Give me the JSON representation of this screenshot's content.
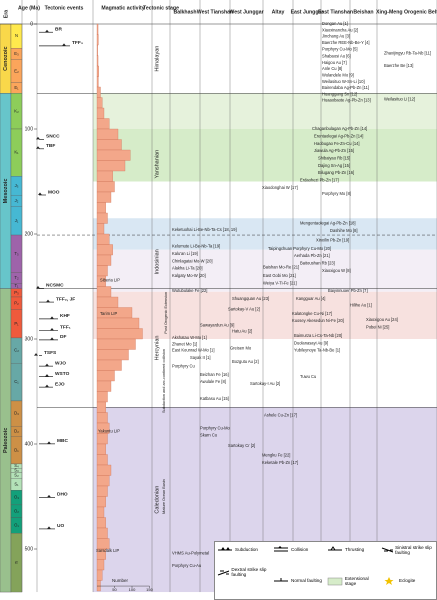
{
  "header": {
    "era": "Era",
    "age": "Age (Ma)",
    "tectonic_events": "Tectonic events",
    "magmatic_activity": "Magmatic activity",
    "tectonic_stage": "Tectonic stage",
    "regions": [
      "Balkhash",
      "West Tianshan",
      "West Junggar",
      "Altay",
      "East Junggar",
      "East Tianshan",
      "Beishan",
      "Xing-Meng Orogenic Belt"
    ]
  },
  "eras": [
    "Cenozoic",
    "Mesozoic",
    "Paleozoic"
  ],
  "periods": [
    "N",
    "E₃",
    "E₂",
    "E₁",
    "K₂",
    "K₁",
    "J₃",
    "J₂",
    "J₁",
    "T₃",
    "T₂",
    "T₁",
    "P₃",
    "P₂",
    "P₁",
    "C₂",
    "C₁",
    "D₃",
    "D₂",
    "D₁",
    "S₄",
    "S₃",
    "S₂",
    "S₁",
    "O₃",
    "O₂",
    "O₁",
    "∈"
  ],
  "age_ticks": [
    0,
    100,
    200,
    300,
    400,
    500
  ],
  "tectonic_events": [
    "BR",
    "TFF₃",
    "SNCC",
    "TBF",
    "MOO",
    "NCSMC",
    "Siberia LIP",
    "TFF₂, JF",
    "KHF",
    "TFF₁",
    "DF",
    "Tarim LIP",
    "TSFS",
    "WJO",
    "WSTO",
    "EJO",
    "MBC",
    "Yakuntu LIP",
    "DHO",
    "Sarsdalk LIP",
    "UO"
  ],
  "magmatic_activity": {
    "bins": [
      0,
      10,
      20,
      30,
      40,
      50,
      60,
      70,
      80,
      90,
      100,
      110,
      120,
      130,
      140,
      150,
      160,
      170,
      180,
      190,
      200,
      210,
      220,
      230,
      240,
      250,
      260,
      270,
      280,
      290,
      300,
      310,
      320,
      330,
      340,
      350,
      360,
      370,
      380,
      390,
      400,
      410,
      420,
      430,
      440,
      450,
      460,
      470,
      480,
      490,
      500,
      510,
      520,
      530,
      540
    ],
    "counts": [
      3,
      4,
      2,
      3,
      5,
      4,
      10,
      15,
      20,
      35,
      60,
      70,
      95,
      80,
      45,
      50,
      40,
      25,
      30,
      20,
      35,
      45,
      40,
      30,
      25,
      40,
      60,
      100,
      120,
      130,
      110,
      90,
      70,
      50,
      40,
      30,
      25,
      30,
      35,
      30,
      25,
      30,
      40,
      35,
      30,
      25,
      20,
      25,
      30,
      35,
      25,
      20,
      15,
      10
    ],
    "axis_label": "Number",
    "ticks": [
      50,
      100,
      150
    ]
  },
  "stages": [
    "Himalayan",
    "Yanshanian",
    "Indosinian",
    "Hercynian",
    "Caledonian"
  ],
  "stage_notes": [
    "Post Orogenic Extension",
    "Subduction and arc-continent collision",
    "Mature Ocean Basin"
  ],
  "deposits": [
    "Dongan Au [1]",
    "Xiaoxinancha Au [2]",
    "Jinchang Au [3]",
    "Baerzhe REE-Nb-Be-Y [4]",
    "Porphyry Cu-Mo [5]",
    "Shabaosi Au [6]",
    "Haigou Au [7]",
    "Anle Cu [8]",
    "Wulandele Mo [9]",
    "Weilasituo W-Sn-Li [10]",
    "Bairendaba Ag-Pb-Zn [11]",
    "Huanggang Sn [12]",
    "Huaaobaote Ag-Pb-Zn [13]",
    "Zhaxijingyu Rb-Ta-Nb [11]",
    "Baerzhe Be [13]",
    "Weilasituo Li [12]",
    "Chaganbulagan Ag-Pb-Zn [14]",
    "Erentaolegai Ag-Pb-Zn [14]",
    "Haobugao Fe-Zn-Cu [14]",
    "Jiawula Ag-Pb-Zn [15]",
    "Shibaiyao Rb [15]",
    "Dajing Sn-Ag [15]",
    "Bilugang Pb-Zn [16]",
    "Erdaohezi Pb-Zn [17]",
    "Xiaodonghai W [17]",
    "Porphyry Mo [8]",
    "Mengentaolegai Ag-Pb-Zn [18]",
    "Dashihe Mo [8]",
    "Xinxilin Pb-Zn [19]",
    "Taipingchuan Porphyry Cu-Mo [20]",
    "Aerhada Pb-Zn [21]",
    "Baitoushan Rb [23]",
    "Xiaoxigou W [8]",
    "Keketuohai Li-Be-Nb-Ta-Cs [18, 19]",
    "Kelumute Li-Be-Nb-Ta [19]",
    "Kalu'an Li [19]",
    "Chinlagatai Mo-W [20]",
    "Alakha Li-Ta [20]",
    "Kalgaty Mo-W [20]",
    "Baishan Mo-Re [21]",
    "East Gobi Mo [21]",
    "Weiya V-Ti-Fe [21]",
    "Wutubulake Fe [22]",
    "Baiyinnuoer Pb-Zn [7]",
    "Shuangquan Au [23]",
    "Kangguar Au [4]",
    "Hilihe Au [1]",
    "Sartokay-V Au [2]",
    "Kalatongke Cu-Ni [17]",
    "Kuosey Akesedun Ni-Fe [20]",
    "Sawayardun Au [9]",
    "Hatu Au [2]",
    "Akshatau W-Mo [1]",
    "Zhanet Mo [1]",
    "East Kounrad W-Mo [1]",
    "Greisen Mo",
    "Baimurza Li-Cs-Ta-Nb [20]",
    "Duolanasayi Au [9]",
    "Yubileynoye Ta-Nb-Be [1]",
    "Xiaoxigou Au [24]",
    "Pobei Ni [25]",
    "Sayak II [1]",
    "Porphyry Cu",
    "Bozgutu Au [2]",
    "Beizhan Fe [16]",
    "Awulale Fe [8]",
    "Sartokay-I Au [2]",
    "Tuwu Cu",
    "Katbasu Au [15]",
    "Ashele Cu-Zn [17]",
    "Porphyry Cu-Mo",
    "Skarn Cu",
    "Sartokay Cr [2]",
    "Mengku Fe [22]",
    "Keketale Pb-Zn [17]",
    "VHMS Au-Polymetal",
    "Porphyry Cu-Au"
  ],
  "legend": [
    "Subduction",
    "Collision",
    "Thrusting",
    "Sinistral strike slip faulting",
    "Dextral strike slip faulting",
    "Normal faulting",
    "Extensional stage",
    "Eclogite"
  ]
}
